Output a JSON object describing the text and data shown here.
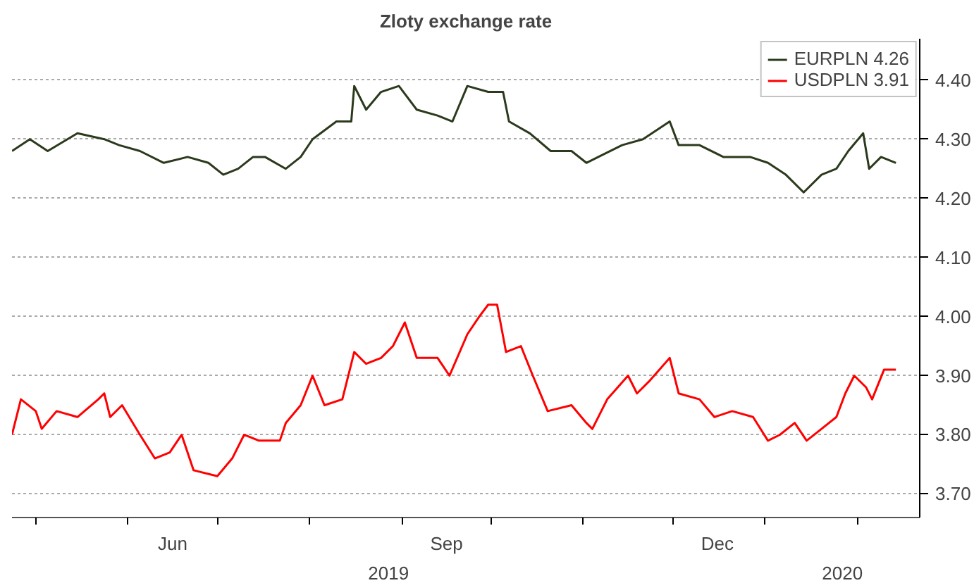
{
  "chart_data": {
    "type": "line",
    "title": "Zloty exchange rate",
    "xlim": [
      "2019-04-23",
      "2020-02-22"
    ],
    "xticks": [
      {
        "value": "2019-05-01",
        "label": null
      },
      {
        "value": "2019-06-01",
        "label": null
      },
      {
        "value": "2019-06-16",
        "label": "Jun"
      },
      {
        "value": "2019-07-01",
        "label": null
      },
      {
        "value": "2019-08-01",
        "label": null
      },
      {
        "value": "2019-09-01",
        "label": null
      },
      {
        "value": "2019-09-16",
        "label": "Sep"
      },
      {
        "value": "2019-10-01",
        "label": null
      },
      {
        "value": "2019-11-01",
        "label": null
      },
      {
        "value": "2019-12-01",
        "label": null
      },
      {
        "value": "2019-12-16",
        "label": "Dec"
      },
      {
        "value": "2020-01-01",
        "label": null
      },
      {
        "value": "2020-02-01",
        "label": null
      }
    ],
    "ylim": [
      3.66,
      4.47
    ],
    "yticks": [
      {
        "value": 3.7,
        "label": "3.70"
      },
      {
        "value": 3.8,
        "label": "3.80"
      },
      {
        "value": 3.9,
        "label": "3.90"
      },
      {
        "value": 4.0,
        "label": "4.00"
      },
      {
        "value": 4.1,
        "label": "4.10"
      },
      {
        "value": 4.2,
        "label": "4.20"
      },
      {
        "value": 4.3,
        "label": "4.30"
      },
      {
        "value": 4.4,
        "label": "4.40"
      }
    ],
    "annotations": [
      "2019",
      "2020"
    ],
    "grid": "y",
    "legend": "top right",
    "series": [
      {
        "name": "EURPLN 4.26",
        "color": "#2b3a1c",
        "x": [
          "2019-04-23",
          "2019-04-29",
          "2019-05-05",
          "2019-05-15",
          "2019-05-24",
          "2019-05-29",
          "2019-06-05",
          "2019-06-13",
          "2019-06-21",
          "2019-06-28",
          "2019-07-03",
          "2019-07-08",
          "2019-07-13",
          "2019-07-17",
          "2019-07-24",
          "2019-07-29",
          "2019-08-02",
          "2019-08-10",
          "2019-08-15",
          "2019-08-16",
          "2019-08-20",
          "2019-08-25",
          "2019-08-31",
          "2019-09-06",
          "2019-09-13",
          "2019-09-18",
          "2019-09-23",
          "2019-09-30",
          "2019-10-05",
          "2019-10-07",
          "2019-10-14",
          "2019-10-21",
          "2019-10-28",
          "2019-11-02",
          "2019-11-06",
          "2019-11-14",
          "2019-11-21",
          "2019-11-30",
          "2019-12-03",
          "2019-12-10",
          "2019-12-18",
          "2019-12-27",
          "2020-01-02",
          "2020-01-08",
          "2020-01-14",
          "2020-01-20",
          "2020-01-25",
          "2020-01-29",
          "2020-02-03",
          "2020-02-05",
          "2020-02-09",
          "2020-02-14"
        ],
        "values": [
          4.28,
          4.3,
          4.28,
          4.31,
          4.3,
          4.29,
          4.28,
          4.26,
          4.27,
          4.26,
          4.24,
          4.25,
          4.27,
          4.27,
          4.25,
          4.27,
          4.3,
          4.33,
          4.33,
          4.39,
          4.35,
          4.38,
          4.39,
          4.35,
          4.34,
          4.33,
          4.39,
          4.38,
          4.38,
          4.33,
          4.31,
          4.28,
          4.28,
          4.26,
          4.27,
          4.29,
          4.3,
          4.33,
          4.29,
          4.29,
          4.27,
          4.27,
          4.26,
          4.24,
          4.21,
          4.24,
          4.25,
          4.28,
          4.31,
          4.25,
          4.27,
          4.26
        ]
      },
      {
        "name": "USDPLN 3.91",
        "color": "#ff0000",
        "x": [
          "2019-04-23",
          "2019-04-26",
          "2019-05-01",
          "2019-05-03",
          "2019-05-08",
          "2019-05-15",
          "2019-05-22",
          "2019-05-24",
          "2019-05-26",
          "2019-05-30",
          "2019-06-05",
          "2019-06-10",
          "2019-06-15",
          "2019-06-19",
          "2019-06-23",
          "2019-07-01",
          "2019-07-06",
          "2019-07-10",
          "2019-07-15",
          "2019-07-22",
          "2019-07-24",
          "2019-07-29",
          "2019-08-02",
          "2019-08-06",
          "2019-08-12",
          "2019-08-16",
          "2019-08-20",
          "2019-08-25",
          "2019-08-29",
          "2019-09-02",
          "2019-09-06",
          "2019-09-13",
          "2019-09-17",
          "2019-09-23",
          "2019-09-27",
          "2019-09-30",
          "2019-10-03",
          "2019-10-06",
          "2019-10-11",
          "2019-10-15",
          "2019-10-20",
          "2019-10-28",
          "2019-11-02",
          "2019-11-04",
          "2019-11-09",
          "2019-11-16",
          "2019-11-19",
          "2019-11-23",
          "2019-11-30",
          "2019-12-03",
          "2019-12-10",
          "2019-12-15",
          "2019-12-21",
          "2019-12-28",
          "2020-01-02",
          "2020-01-06",
          "2020-01-11",
          "2020-01-15",
          "2020-01-20",
          "2020-01-25",
          "2020-01-28",
          "2020-01-31",
          "2020-02-04",
          "2020-02-06",
          "2020-02-10",
          "2020-02-14"
        ],
        "values": [
          3.8,
          3.86,
          3.84,
          3.81,
          3.84,
          3.83,
          3.86,
          3.87,
          3.83,
          3.85,
          3.8,
          3.76,
          3.77,
          3.8,
          3.74,
          3.73,
          3.76,
          3.8,
          3.79,
          3.79,
          3.82,
          3.85,
          3.9,
          3.85,
          3.86,
          3.94,
          3.92,
          3.93,
          3.95,
          3.99,
          3.93,
          3.93,
          3.9,
          3.97,
          4.0,
          4.02,
          4.02,
          3.94,
          3.95,
          3.9,
          3.84,
          3.85,
          3.82,
          3.81,
          3.86,
          3.9,
          3.87,
          3.89,
          3.93,
          3.87,
          3.86,
          3.83,
          3.84,
          3.83,
          3.79,
          3.8,
          3.82,
          3.79,
          3.81,
          3.83,
          3.87,
          3.9,
          3.88,
          3.86,
          3.91,
          3.91
        ]
      }
    ]
  }
}
